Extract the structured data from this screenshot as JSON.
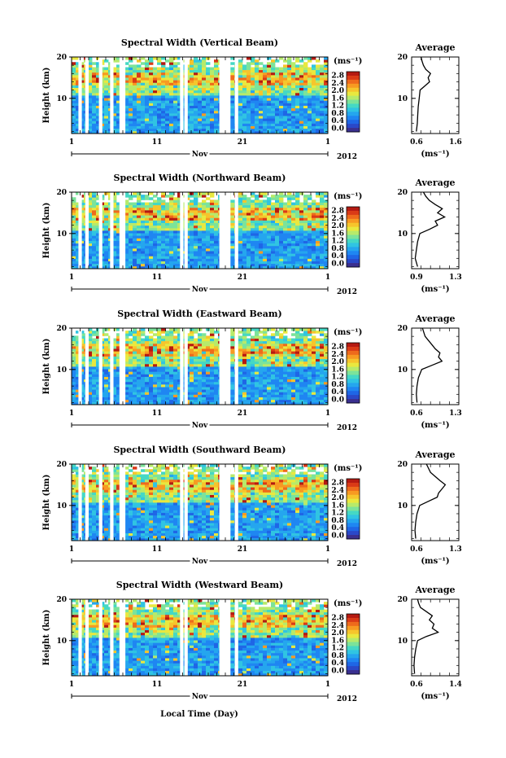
{
  "figure": {
    "xlabel": "Local Time (Day)",
    "colorbar_unit": "(ms⁻¹)",
    "avg_title": "Average",
    "avg_xlabel": "(ms⁻¹)",
    "month_label": "Nov",
    "year_label": "2012",
    "ylabel": "Height (km)"
  },
  "chart_data": [
    {
      "type": "heatmap",
      "title": "Spectral Width (Vertical Beam)",
      "ylabel": "Height (km)",
      "x_ticks": [
        "1",
        "11",
        "21",
        "1"
      ],
      "y_ticks": [
        "20",
        "10"
      ],
      "ylim": [
        1.5,
        20
      ],
      "colorbar_ticks": [
        "2.8",
        "2.4",
        "2.0",
        "1.6",
        "1.2",
        "0.8",
        "0.4",
        "0.0"
      ],
      "gap_days": [
        1.8,
        2.6,
        4.2,
        5.5,
        6.6,
        6.9,
        13.7,
        14.2,
        18.3,
        18.6,
        18.9,
        19.2,
        20.1
      ],
      "average_profile": {
        "xlim": [
          0.6,
          1.6
        ],
        "x_ticks": [
          "0.6",
          "1.6"
        ],
        "y_ticks": [
          "20",
          "10"
        ],
        "heights": [
          2,
          4,
          6,
          8,
          10,
          12,
          13,
          14,
          15,
          16,
          17,
          18,
          19,
          20
        ],
        "values": [
          0.7,
          0.72,
          0.73,
          0.74,
          0.76,
          0.78,
          0.88,
          0.98,
          0.95,
          1.0,
          0.9,
          0.85,
          0.82,
          0.8
        ]
      }
    },
    {
      "type": "heatmap",
      "title": "Spectral Width (Northward Beam)",
      "ylabel": "Height (km)",
      "x_ticks": [
        "1",
        "11",
        "21",
        "1"
      ],
      "y_ticks": [
        "20",
        "10"
      ],
      "ylim": [
        1.5,
        20
      ],
      "colorbar_ticks": [
        "2.8",
        "2.4",
        "2.0",
        "1.6",
        "1.2",
        "0.8",
        "0.4",
        "0.0"
      ],
      "gap_days": [
        1.8,
        2.6,
        4.2,
        5.5,
        6.6,
        6.9,
        13.7,
        14.2,
        18.3,
        18.6,
        18.9,
        19.2,
        20.1
      ],
      "average_profile": {
        "xlim": [
          0.9,
          1.3
        ],
        "x_ticks": [
          "0.9",
          "1.3"
        ],
        "y_ticks": [
          "20",
          "10"
        ],
        "heights": [
          2,
          4,
          6,
          8,
          10,
          11,
          12,
          13,
          14,
          15,
          16,
          17,
          18,
          19,
          20
        ],
        "values": [
          0.95,
          0.93,
          0.94,
          0.95,
          0.97,
          1.05,
          1.12,
          1.1,
          1.18,
          1.12,
          1.16,
          1.1,
          1.05,
          1.02,
          1.0
        ]
      }
    },
    {
      "type": "heatmap",
      "title": "Spectral Width (Eastward Beam)",
      "ylabel": "Height (km)",
      "x_ticks": [
        "1",
        "11",
        "21",
        "1"
      ],
      "y_ticks": [
        "20",
        "10"
      ],
      "ylim": [
        1.5,
        20
      ],
      "colorbar_ticks": [
        "2.8",
        "2.4",
        "2.0",
        "1.6",
        "1.2",
        "0.8",
        "0.4",
        "0.0"
      ],
      "gap_days": [
        1.8,
        2.6,
        4.2,
        5.5,
        6.6,
        6.9,
        13.7,
        14.2,
        18.3,
        18.6,
        18.9,
        19.2,
        20.1
      ],
      "average_profile": {
        "xlim": [
          0.6,
          1.3
        ],
        "x_ticks": [
          "0.6",
          "1.3"
        ],
        "y_ticks": [
          "20",
          "10"
        ],
        "heights": [
          2,
          4,
          6,
          8,
          10,
          11,
          12,
          13,
          14,
          15,
          16,
          17,
          18,
          19,
          20
        ],
        "values": [
          0.68,
          0.67,
          0.68,
          0.7,
          0.75,
          0.9,
          1.05,
          1.0,
          1.02,
          0.95,
          0.9,
          0.85,
          0.8,
          0.78,
          0.76
        ]
      }
    },
    {
      "type": "heatmap",
      "title": "Spectral Width (Southward Beam)",
      "ylabel": "Height (km)",
      "x_ticks": [
        "1",
        "11",
        "21",
        "1"
      ],
      "y_ticks": [
        "20",
        "10"
      ],
      "ylim": [
        1.5,
        20
      ],
      "colorbar_ticks": [
        "2.8",
        "2.4",
        "2.0",
        "1.6",
        "1.2",
        "0.8",
        "0.4",
        "0.0"
      ],
      "gap_days": [
        1.8,
        2.6,
        4.2,
        5.5,
        6.6,
        6.9,
        13.7,
        14.2,
        18.3,
        18.6,
        18.9,
        19.2,
        20.1
      ],
      "average_profile": {
        "xlim": [
          0.6,
          1.3
        ],
        "x_ticks": [
          "0.6",
          "1.3"
        ],
        "y_ticks": [
          "20",
          "10"
        ],
        "heights": [
          2,
          4,
          6,
          8,
          10,
          11,
          12,
          13,
          14,
          15,
          16,
          17,
          18,
          19,
          20
        ],
        "values": [
          0.66,
          0.65,
          0.66,
          0.68,
          0.72,
          0.85,
          0.98,
          1.0,
          1.05,
          1.1,
          1.02,
          0.95,
          0.88,
          0.85,
          0.82
        ]
      }
    },
    {
      "type": "heatmap",
      "title": "Spectral Width (Westward Beam)",
      "ylabel": "Height (km)",
      "x_ticks": [
        "1",
        "11",
        "21",
        "1"
      ],
      "y_ticks": [
        "20",
        "10"
      ],
      "ylim": [
        1.5,
        20
      ],
      "colorbar_ticks": [
        "2.8",
        "2.4",
        "2.0",
        "1.6",
        "1.2",
        "0.8",
        "0.4",
        "0.0"
      ],
      "gap_days": [
        1.8,
        2.6,
        4.2,
        5.5,
        6.6,
        6.9,
        13.7,
        14.2,
        18.3,
        18.6,
        18.9,
        19.2,
        20.1
      ],
      "average_profile": {
        "xlim": [
          0.6,
          1.4
        ],
        "x_ticks": [
          "0.6",
          "1.4"
        ],
        "y_ticks": [
          "20",
          "10"
        ],
        "heights": [
          2,
          4,
          6,
          8,
          10,
          11,
          12,
          13,
          14,
          15,
          16,
          17,
          18,
          19,
          20
        ],
        "values": [
          0.65,
          0.64,
          0.65,
          0.67,
          0.7,
          0.85,
          1.05,
          0.95,
          0.98,
          0.9,
          0.95,
          0.85,
          0.75,
          0.72,
          0.7
        ]
      }
    }
  ]
}
